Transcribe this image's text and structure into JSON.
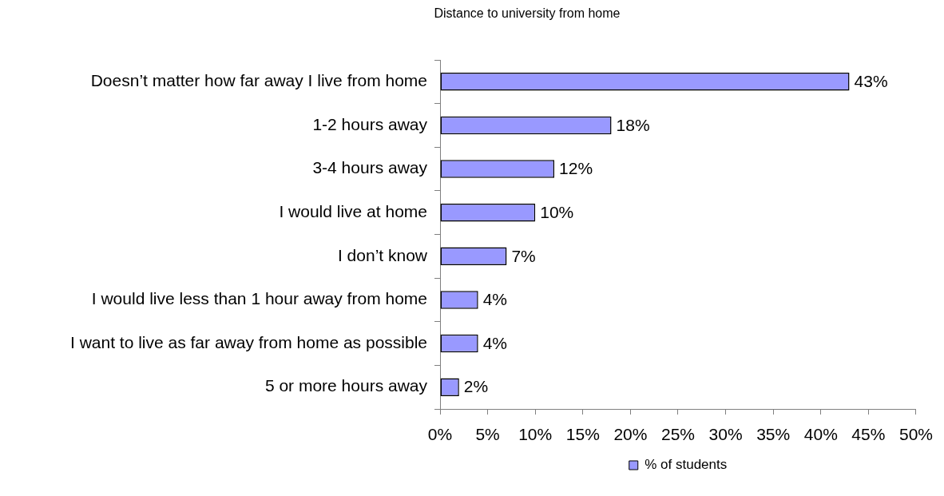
{
  "chart_data": {
    "type": "bar",
    "orientation": "horizontal",
    "title": "Distance to university from home",
    "categories": [
      "Doesn’t matter how far away I live from home",
      "1-2 hours away",
      "3-4 hours away",
      "I would live at home",
      "I don’t know",
      "I would live less than 1 hour away from home",
      "I want to live as far away from home as possible",
      "5 or more hours away"
    ],
    "series": [
      {
        "name": "% of students",
        "color": "#9999ff",
        "values": [
          43,
          18,
          12,
          10,
          7,
          4,
          4,
          2
        ],
        "value_labels": [
          "43%",
          "18%",
          "12%",
          "10%",
          "7%",
          "4%",
          "4%",
          "2%"
        ]
      }
    ],
    "xlim": [
      0,
      50
    ],
    "xticks": [
      {
        "value": 0,
        "label": "0%"
      },
      {
        "value": 5,
        "label": "5%"
      },
      {
        "value": 10,
        "label": "10%"
      },
      {
        "value": 15,
        "label": "15%"
      },
      {
        "value": 20,
        "label": "20%"
      },
      {
        "value": 25,
        "label": "25%"
      },
      {
        "value": 30,
        "label": "30%"
      },
      {
        "value": 35,
        "label": "35%"
      },
      {
        "value": 40,
        "label": "40%"
      },
      {
        "value": 45,
        "label": "45%"
      },
      {
        "value": 50,
        "label": "50%"
      }
    ],
    "legend": "bottom"
  }
}
